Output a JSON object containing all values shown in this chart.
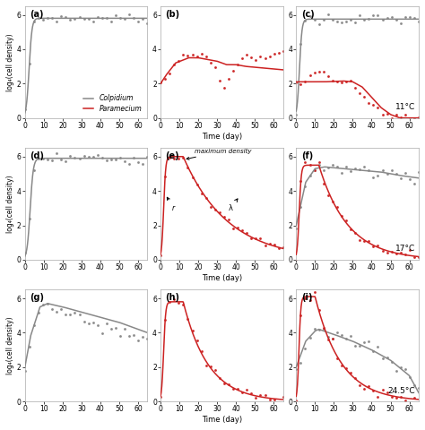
{
  "figsize": [
    4.74,
    4.8
  ],
  "dpi": 100,
  "bg_color": "#ffffff",
  "colpidium_color": "#888888",
  "paramecium_color": "#cc2222",
  "xlim": [
    0,
    65
  ],
  "ylim": [
    0,
    6.5
  ],
  "yticks": [
    0,
    2,
    4,
    6
  ],
  "xticks": [
    0,
    10,
    20,
    30,
    40,
    50,
    60
  ],
  "ylabel": "log₄(cell density)",
  "panel_labels": [
    "(a)",
    "(b)",
    "(c)",
    "(d)",
    "(e)",
    "(f)",
    "(g)",
    "(h)",
    "(i)"
  ],
  "temp_labels": [
    "",
    "",
    "11°C",
    "",
    "",
    "17°C",
    "",
    "",
    "24.5°C"
  ],
  "show_ylabel": [
    true,
    false,
    false,
    true,
    false,
    false,
    true,
    false,
    false
  ],
  "show_xlabel": [
    false,
    true,
    false,
    false,
    true,
    false,
    false,
    true,
    false
  ],
  "show_legend": [
    true,
    false,
    false,
    false,
    false,
    false,
    false,
    false,
    false
  ]
}
